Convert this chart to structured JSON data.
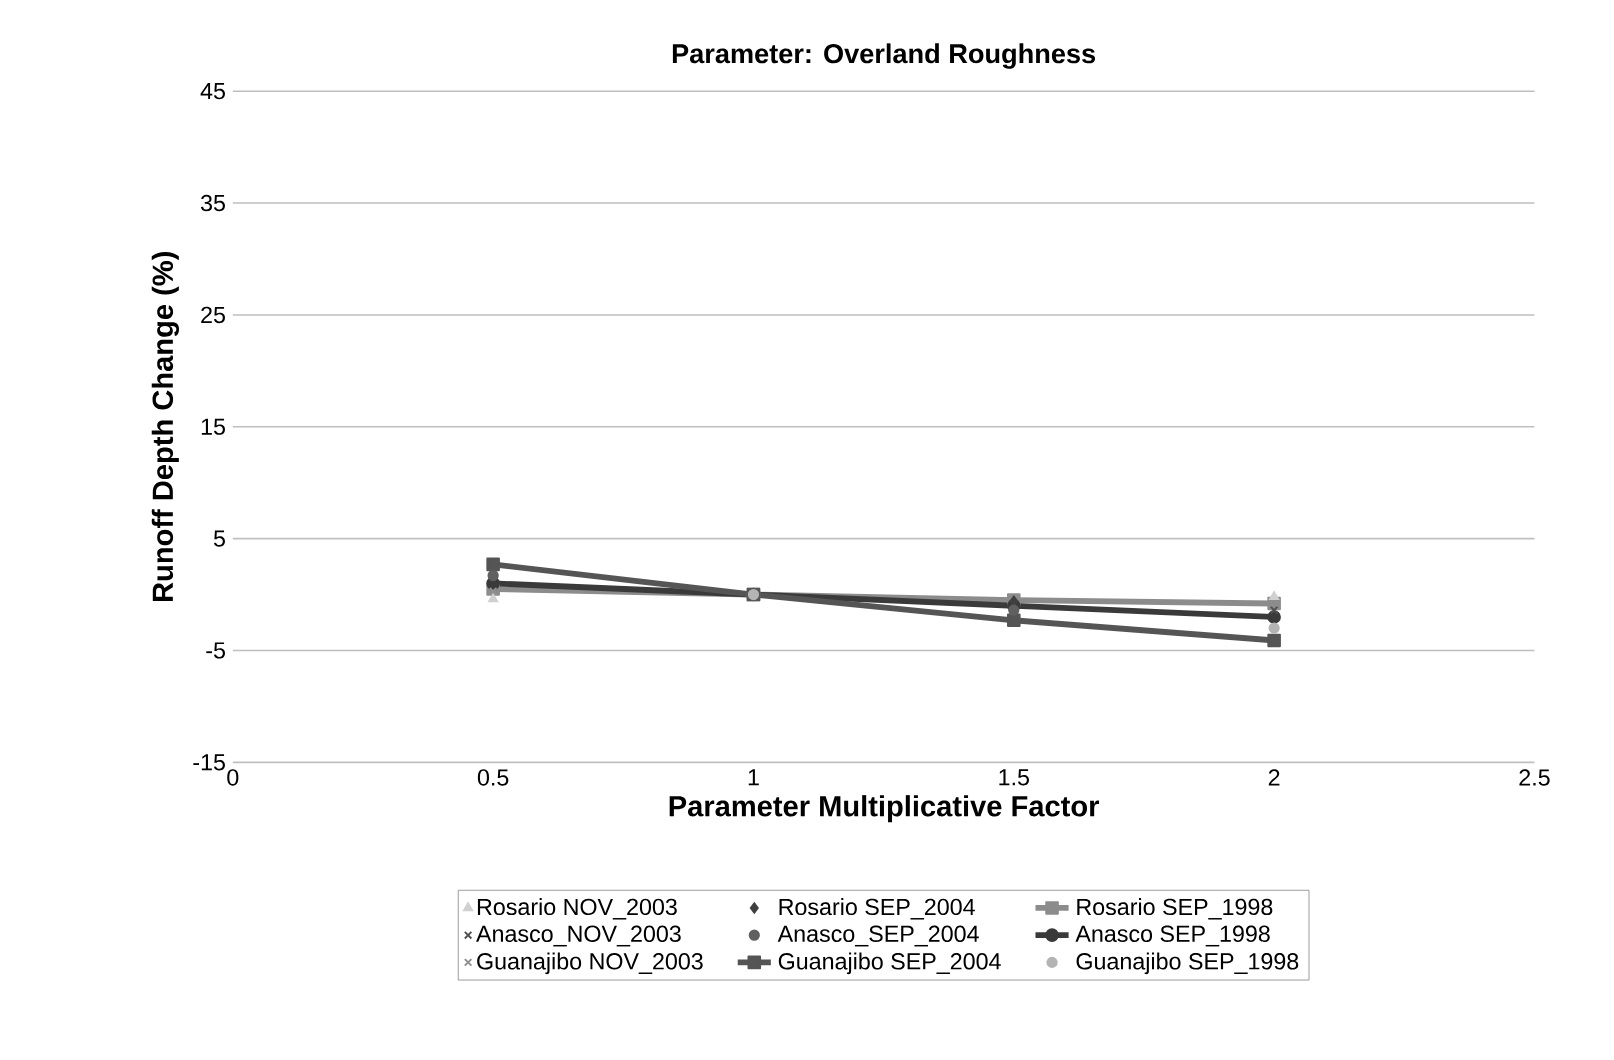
{
  "chart_data": {
    "type": "line",
    "title": "Parameter: Overland Roughness",
    "xlabel": "Parameter Multiplicative Factor",
    "ylabel": "Runoff Depth Change (%)",
    "x": [
      0.5,
      1,
      1.5,
      2
    ],
    "xlim": [
      0,
      2.5
    ],
    "xticks": [
      0,
      0.5,
      1,
      1.5,
      2,
      2.5
    ],
    "ylim": [
      -15,
      45
    ],
    "yticks": [
      -15,
      -5,
      5,
      15,
      25,
      35,
      45
    ],
    "grid": "y",
    "legend": "bottom",
    "series": [
      {
        "name": "Rosario NOV_2003",
        "type": "scatter",
        "marker": "triangle",
        "color": "#d0d0d0",
        "values": [
          -0.4,
          null,
          null,
          -0.2
        ]
      },
      {
        "name": "Rosario SEP_2004",
        "type": "scatter",
        "marker": "diamond",
        "color": "#404040",
        "values": [
          null,
          null,
          -0.6,
          null
        ]
      },
      {
        "name": "Rosario SEP_1998",
        "marker": "square",
        "color": "#8c8c8c",
        "values": [
          0.5,
          0,
          -0.5,
          -0.8
        ]
      },
      {
        "name": "Anasco_NOV_2003",
        "type": "scatter",
        "marker": "cross",
        "color": "#505050",
        "values": [
          null,
          null,
          null,
          -1.4
        ]
      },
      {
        "name": "Anasco_SEP_2004",
        "type": "scatter",
        "marker": "circle",
        "color": "#606060",
        "values": [
          1.7,
          null,
          -1.4,
          null
        ]
      },
      {
        "name": "Anasco SEP_1998",
        "marker": "circle",
        "color": "#3a3a3a",
        "values": [
          1.0,
          0,
          -1.0,
          -2.0
        ]
      },
      {
        "name": "Guanajibo NOV_2003",
        "type": "scatter",
        "marker": "cross",
        "color": "#909090",
        "values": [
          0.3,
          null,
          null,
          null
        ]
      },
      {
        "name": "Guanajibo SEP_2004",
        "marker": "square",
        "color": "#555555",
        "values": [
          2.7,
          0,
          -2.3,
          -4.1
        ]
      },
      {
        "name": "Guanajibo SEP_1998",
        "type": "scatter",
        "marker": "circle",
        "color": "#b4b4b4",
        "values": [
          null,
          0,
          null,
          -3.0
        ]
      }
    ]
  }
}
